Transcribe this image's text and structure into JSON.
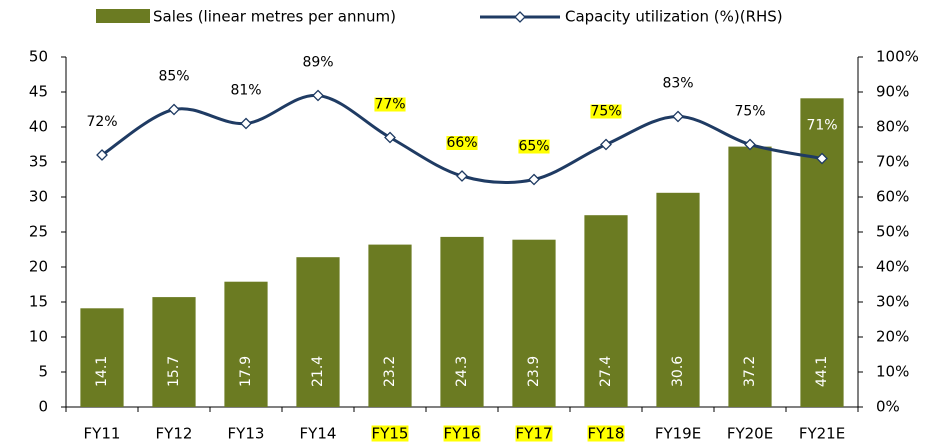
{
  "chart_data": {
    "type": "bar_line",
    "categories": [
      "FY11",
      "FY12",
      "FY13",
      "FY14",
      "FY15",
      "FY16",
      "FY17",
      "FY18",
      "FY19E",
      "FY20E",
      "FY21E"
    ],
    "series": [
      {
        "name": "Sales (linear metres per annum)",
        "color": "#6b7b22",
        "type": "bar",
        "values": [
          14.1,
          15.7,
          17.9,
          21.4,
          23.2,
          24.3,
          23.9,
          27.4,
          30.6,
          37.2,
          44.1
        ]
      },
      {
        "name": "Capacity utilization (%)(RHS)",
        "color": "#1f3b63",
        "type": "line",
        "axis": "y2",
        "values": [
          72,
          85,
          81,
          89,
          77,
          66,
          65,
          75,
          83,
          75,
          71
        ],
        "value_labels": [
          "72%",
          "85%",
          "81%",
          "89%",
          "77%",
          "66%",
          "65%",
          "75%",
          "83%",
          "75%",
          "71%"
        ]
      }
    ],
    "ylim": [
      0,
      50
    ],
    "yticks": [
      0,
      5,
      10,
      15,
      20,
      25,
      30,
      35,
      40,
      45,
      50
    ],
    "y2lim": [
      0,
      100
    ],
    "y2ticks": [
      {
        "value": 0,
        "label": "0%"
      },
      {
        "value": 10,
        "label": "10%"
      },
      {
        "value": 20,
        "label": "20%"
      },
      {
        "value": 30,
        "label": "30%"
      },
      {
        "value": 40,
        "label": "40%"
      },
      {
        "value": 50,
        "label": "50%"
      },
      {
        "value": 60,
        "label": "60%"
      },
      {
        "value": 70,
        "label": "70%"
      },
      {
        "value": 80,
        "label": "80%"
      },
      {
        "value": 90,
        "label": "90%"
      },
      {
        "value": 100,
        "label": "100%"
      }
    ],
    "grid": false
  }
}
